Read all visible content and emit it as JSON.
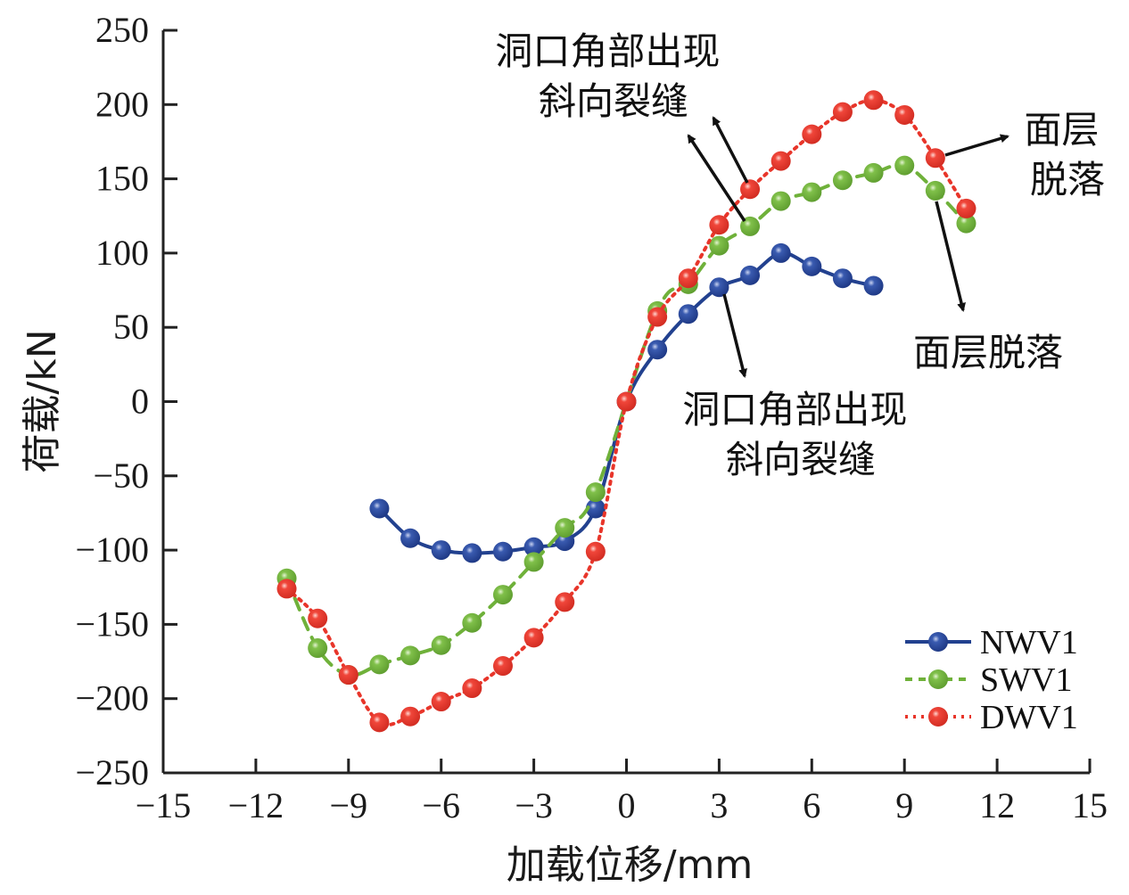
{
  "chart_data": {
    "type": "line",
    "title": "",
    "xlabel": "加载位移/mm",
    "ylabel": "荷载/kN",
    "xlim": [
      -15,
      15
    ],
    "ylim": [
      -250,
      250
    ],
    "xticks": [
      -15,
      -12,
      -9,
      -6,
      -3,
      0,
      3,
      6,
      9,
      12,
      15
    ],
    "yticks": [
      250,
      200,
      150,
      100,
      50,
      0,
      -50,
      -100,
      -150,
      -200,
      -250
    ],
    "xtick_labels": [
      "−15",
      "−12",
      "−9",
      "−6",
      "−3",
      "0",
      "3",
      "6",
      "9",
      "12",
      "15"
    ],
    "ytick_labels": [
      "250",
      "200",
      "150",
      "100",
      "50",
      "0",
      "−50",
      "−100",
      "−150",
      "−200",
      "−250"
    ],
    "grid": false,
    "legend_position": "bottom-right",
    "series": [
      {
        "name": "NWV1",
        "color": "#22418f",
        "line_style": "solid",
        "x": [
          -8,
          -7,
          -6,
          -5,
          -4,
          -3,
          -2,
          -1,
          0,
          1,
          2,
          3,
          4,
          5,
          6,
          7,
          8
        ],
        "y": [
          -72,
          -92,
          -100,
          -102,
          -101,
          -98,
          -94,
          -72,
          0,
          35,
          59,
          77,
          85,
          100,
          91,
          83,
          78
        ]
      },
      {
        "name": "SWV1",
        "color": "#6fb13a",
        "line_style": "dashed",
        "x": [
          -11,
          -10,
          -9,
          -8,
          -7,
          -6,
          -5,
          -4,
          -3,
          -2,
          -1,
          1,
          2,
          3,
          4,
          5,
          6,
          7,
          8,
          9,
          10,
          11
        ],
        "y": [
          -119,
          -166,
          -184,
          -177,
          -171,
          -164,
          -149,
          -130,
          -108,
          -85,
          -61,
          61,
          79,
          105,
          118,
          135,
          141,
          149,
          154,
          159,
          142,
          120
        ]
      },
      {
        "name": "DWV1",
        "color": "#e8352a",
        "line_style": "dotted",
        "x": [
          -11,
          -10,
          -9,
          -8,
          -7,
          -6,
          -5,
          -4,
          -3,
          -2,
          -1,
          0,
          1,
          2,
          3,
          4,
          5,
          6,
          7,
          8,
          9,
          10,
          11
        ],
        "y": [
          -126,
          -146,
          -184,
          -216,
          -212,
          -202,
          -193,
          -178,
          -159,
          -135,
          -101,
          0,
          57,
          83,
          119,
          143,
          162,
          180,
          195,
          203,
          193,
          164,
          130
        ]
      }
    ],
    "annotations": [
      {
        "id": "crack-top",
        "lines": [
          "洞口角部出现",
          "斜向裂缝"
        ],
        "targets": [
          {
            "series": "DWV1",
            "x": 4
          },
          {
            "series": "SWV1",
            "x": 4
          }
        ]
      },
      {
        "id": "crack-bottom",
        "lines": [
          "洞口角部出现",
          "斜向裂缝"
        ],
        "targets": [
          {
            "series": "NWV1",
            "x": 3
          }
        ]
      },
      {
        "id": "spall-right",
        "lines": [
          "面层",
          "脱落"
        ],
        "targets": [
          {
            "series": "DWV1",
            "x": 10
          }
        ]
      },
      {
        "id": "spall-mid",
        "lines": [
          "面层脱落"
        ],
        "targets": [
          {
            "series": "SWV1",
            "x": 10
          }
        ]
      }
    ]
  }
}
